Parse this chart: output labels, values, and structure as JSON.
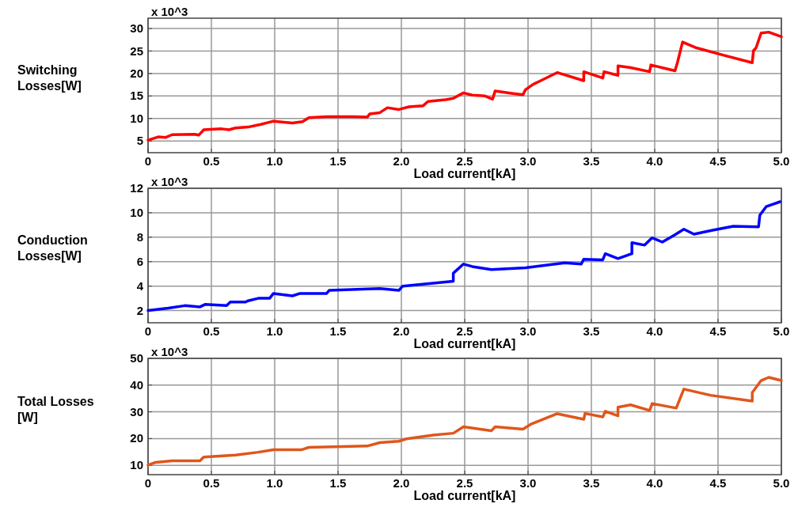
{
  "chart_data": [
    {
      "type": "line",
      "ylabel": "Switching\nLosses[W]",
      "xlabel": "Load current[kA]",
      "annotations": [
        "x 10^3"
      ],
      "xlim": [
        0,
        5
      ],
      "xticks": [
        {
          "value": 0,
          "label": "0"
        },
        0.5,
        {
          "value": 1,
          "label": "1.0"
        },
        1.5,
        {
          "value": 2,
          "label": "2.0"
        },
        2.5,
        {
          "value": 3,
          "label": "3.0"
        },
        3.5,
        {
          "value": 4,
          "label": "4.0"
        },
        4.5,
        {
          "value": 5,
          "label": "5.0"
        }
      ],
      "ylim": [
        2.4,
        32.3
      ],
      "yticks": [
        5,
        10,
        15,
        20,
        25,
        30
      ],
      "grid": true,
      "line_style": "solid",
      "series": [
        {
          "color": "#ff0000",
          "x": [
            0,
            0.08,
            0.14,
            0.19,
            0.37,
            0.4,
            0.44,
            0.58,
            0.64,
            0.69,
            0.79,
            0.89,
            0.96,
            0.99,
            1.14,
            1.22,
            1.27,
            1.41,
            1.62,
            1.73,
            1.75,
            1.83,
            1.89,
            1.98,
            2.06,
            2.17,
            2.21,
            2.35,
            2.41,
            2.49,
            2.56,
            2.66,
            2.72,
            2.74,
            2.87,
            2.96,
            2.98,
            3.04,
            3.1,
            3.23,
            3.28,
            3.44,
            3.44,
            3.59,
            3.6,
            3.71,
            3.71,
            3.81,
            3.96,
            3.97,
            4.16,
            4.18,
            4.22,
            4.33,
            4.54,
            4.77,
            4.78,
            4.8,
            4.84,
            4.9,
            5.0
          ],
          "values": [
            5.2,
            5.9,
            5.8,
            6.4,
            6.5,
            6.3,
            7.5,
            7.7,
            7.5,
            7.9,
            8.1,
            8.7,
            9.2,
            9.4,
            9.0,
            9.3,
            10.2,
            10.4,
            10.4,
            10.3,
            11.0,
            11.3,
            12.4,
            12.0,
            12.6,
            12.8,
            13.8,
            14.2,
            14.5,
            15.7,
            15.2,
            15.0,
            14.3,
            16.1,
            15.6,
            15.3,
            16.4,
            17.6,
            18.4,
            20.2,
            19.8,
            18.4,
            20.4,
            19.0,
            20.4,
            19.6,
            21.7,
            21.3,
            20.4,
            21.9,
            20.6,
            22.5,
            27.0,
            25.7,
            24.1,
            22.4,
            25.1,
            25.7,
            29.0,
            29.2,
            28.2
          ]
        }
      ]
    },
    {
      "type": "line",
      "ylabel": "Conduction\nLosses[W]",
      "xlabel": "Load current[kA]",
      "annotations": [
        "x 10^3"
      ],
      "xlim": [
        0,
        5
      ],
      "xticks": [
        {
          "value": 0,
          "label": "0"
        },
        0.5,
        {
          "value": 1,
          "label": "1.0"
        },
        1.5,
        {
          "value": 2,
          "label": "2.0"
        },
        2.5,
        {
          "value": 3,
          "label": "3.0"
        },
        3.5,
        {
          "value": 4,
          "label": "4.0"
        },
        4.5,
        {
          "value": 5,
          "label": "5.0"
        }
      ],
      "ylim": [
        1,
        12
      ],
      "yticks": [
        2,
        4,
        6,
        8,
        10,
        12
      ],
      "grid": true,
      "line_style": "solid",
      "series": [
        {
          "color": "#0000ff",
          "x": [
            0,
            0.16,
            0.29,
            0.41,
            0.45,
            0.62,
            0.65,
            0.77,
            0.79,
            0.87,
            0.96,
            0.99,
            1.14,
            1.2,
            1.41,
            1.43,
            1.83,
            1.98,
            2.01,
            2.41,
            2.41,
            2.49,
            2.56,
            2.71,
            2.98,
            3.29,
            3.42,
            3.44,
            3.59,
            3.61,
            3.71,
            3.82,
            3.82,
            3.92,
            3.98,
            4.06,
            4.16,
            4.23,
            4.31,
            4.45,
            4.62,
            4.82,
            4.83,
            4.88,
            4.99
          ],
          "values": [
            2.0,
            2.2,
            2.4,
            2.3,
            2.5,
            2.4,
            2.7,
            2.7,
            2.8,
            3.0,
            3.0,
            3.4,
            3.2,
            3.4,
            3.4,
            3.65,
            3.8,
            3.65,
            4.0,
            4.4,
            5.05,
            5.8,
            5.6,
            5.35,
            5.5,
            5.9,
            5.8,
            6.2,
            6.15,
            6.65,
            6.25,
            6.65,
            7.55,
            7.35,
            7.95,
            7.6,
            8.2,
            8.65,
            8.25,
            8.55,
            8.9,
            8.85,
            9.8,
            10.5,
            10.9
          ]
        }
      ]
    },
    {
      "type": "line",
      "ylabel": "Total Losses\n[W]",
      "xlabel": "Load current[kA]",
      "annotations": [
        "x 10^3"
      ],
      "xlim": [
        0,
        5
      ],
      "xticks": [
        {
          "value": 0,
          "label": "0"
        },
        0.5,
        {
          "value": 1,
          "label": "1.0"
        },
        1.5,
        {
          "value": 2,
          "label": "2.0"
        },
        2.5,
        {
          "value": 3,
          "label": "3.0"
        },
        3.5,
        {
          "value": 4,
          "label": "4.0"
        },
        4.5,
        {
          "value": 5,
          "label": "5.0"
        }
      ],
      "ylim": [
        6.5,
        50
      ],
      "yticks": [
        10,
        20,
        30,
        40,
        50
      ],
      "grid": true,
      "line_style": "solid",
      "series": [
        {
          "color": "#e0561b",
          "x": [
            0,
            0.06,
            0.19,
            0.41,
            0.44,
            0.69,
            0.87,
            0.99,
            1.21,
            1.27,
            1.73,
            1.83,
            1.98,
            2.04,
            2.25,
            2.41,
            2.49,
            2.71,
            2.74,
            2.96,
            3.02,
            3.23,
            3.44,
            3.45,
            3.59,
            3.61,
            3.71,
            3.71,
            3.81,
            3.96,
            3.98,
            4.17,
            4.23,
            4.44,
            4.77,
            4.77,
            4.84,
            4.9,
            5.0
          ],
          "values": [
            10.1,
            11.1,
            11.7,
            11.7,
            13.1,
            13.8,
            14.9,
            15.8,
            15.8,
            16.7,
            17.2,
            18.5,
            19.0,
            19.9,
            21.3,
            22.0,
            24.4,
            22.9,
            24.4,
            23.5,
            25.3,
            29.3,
            27.2,
            29.4,
            28.1,
            30.2,
            28.5,
            31.7,
            32.6,
            30.5,
            33.1,
            31.4,
            38.5,
            36.2,
            34.0,
            37.2,
            41.7,
            42.9,
            41.7
          ]
        }
      ]
    }
  ]
}
